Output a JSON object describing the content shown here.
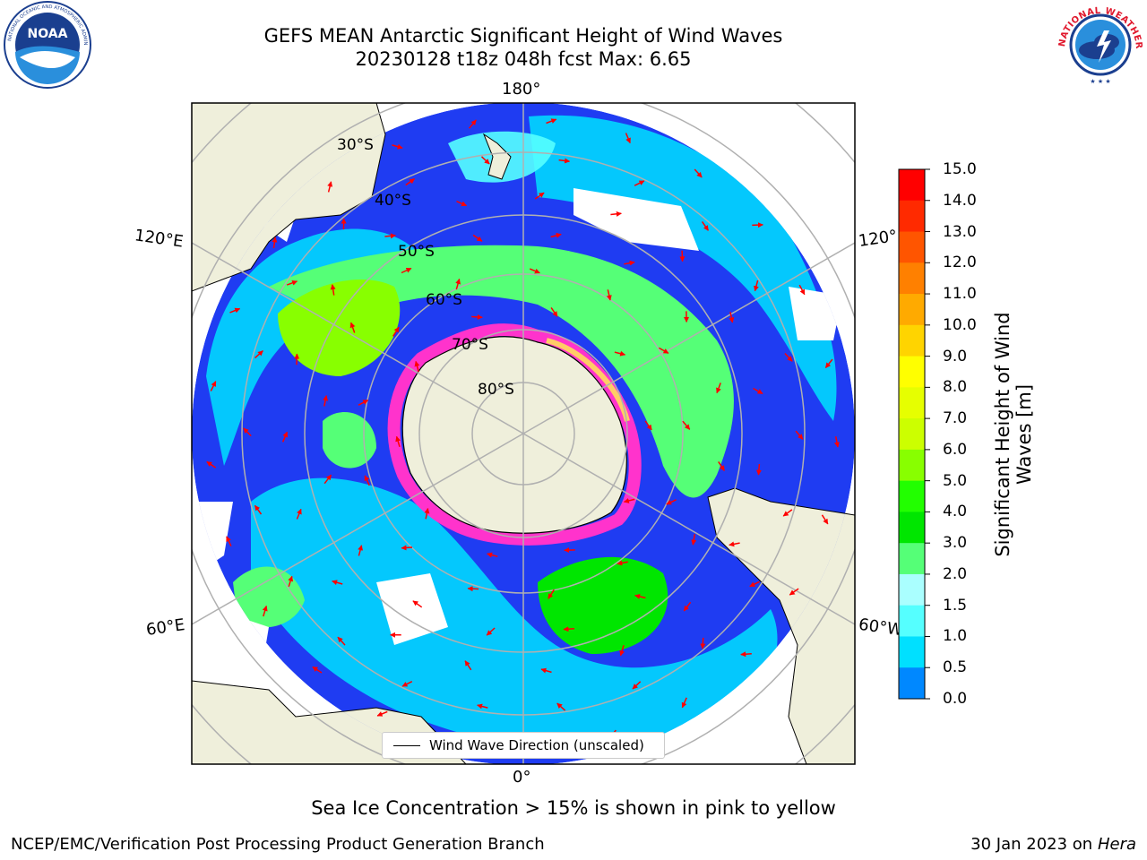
{
  "header": {
    "title_line1": "GEFS MEAN Antarctic Significant Height of Wind Waves",
    "title_line2": "20230128 t18z 048h fcst   Max: 6.65"
  },
  "logos": {
    "left": "noaa-logo",
    "right": "national-weather-service-logo"
  },
  "map": {
    "projection": "south-polar-stereographic",
    "longitude_labels": [
      "180°",
      "120°E",
      "120°",
      "60°E",
      "60°W",
      "0°"
    ],
    "latitude_labels": [
      "30°S",
      "40°S",
      "50°S",
      "60°S",
      "70°S",
      "80°S"
    ],
    "land_color": "#efefdb",
    "arrow_color": "#ff0000"
  },
  "legend": {
    "label": "Wind Wave Direction (unscaled)"
  },
  "colorbar": {
    "label": "Significant Height of Wind Waves [m]",
    "label_line1": "Significant Height of Wind",
    "label_line2": "Waves [m]",
    "ticks": [
      "15.0",
      "14.0",
      "13.0",
      "12.0",
      "11.0",
      "10.0",
      "9.0",
      "8.0",
      "7.0",
      "6.0",
      "5.0",
      "4.0",
      "3.0",
      "2.0",
      "1.5",
      "1.0",
      "0.5",
      "0.0"
    ],
    "colors_top_to_bottom": [
      "#ff0000",
      "#ff2a00",
      "#ff5500",
      "#ff8000",
      "#ffaa00",
      "#ffd400",
      "#ffff00",
      "#e6ff00",
      "#ccff00",
      "#88ff00",
      "#22ff00",
      "#00e600",
      "#55ff77",
      "#aaffff",
      "#55ffff",
      "#00e0ff",
      "#0088ff",
      "#0000ff"
    ]
  },
  "notes": {
    "sea_ice": "Sea Ice Concentration > 15% is shown in pink to yellow"
  },
  "footer": {
    "left": "NCEP/EMC/Verification Post Processing Product Generation Branch",
    "right_date": "30 Jan 2023 on",
    "right_machine": "Hera"
  }
}
